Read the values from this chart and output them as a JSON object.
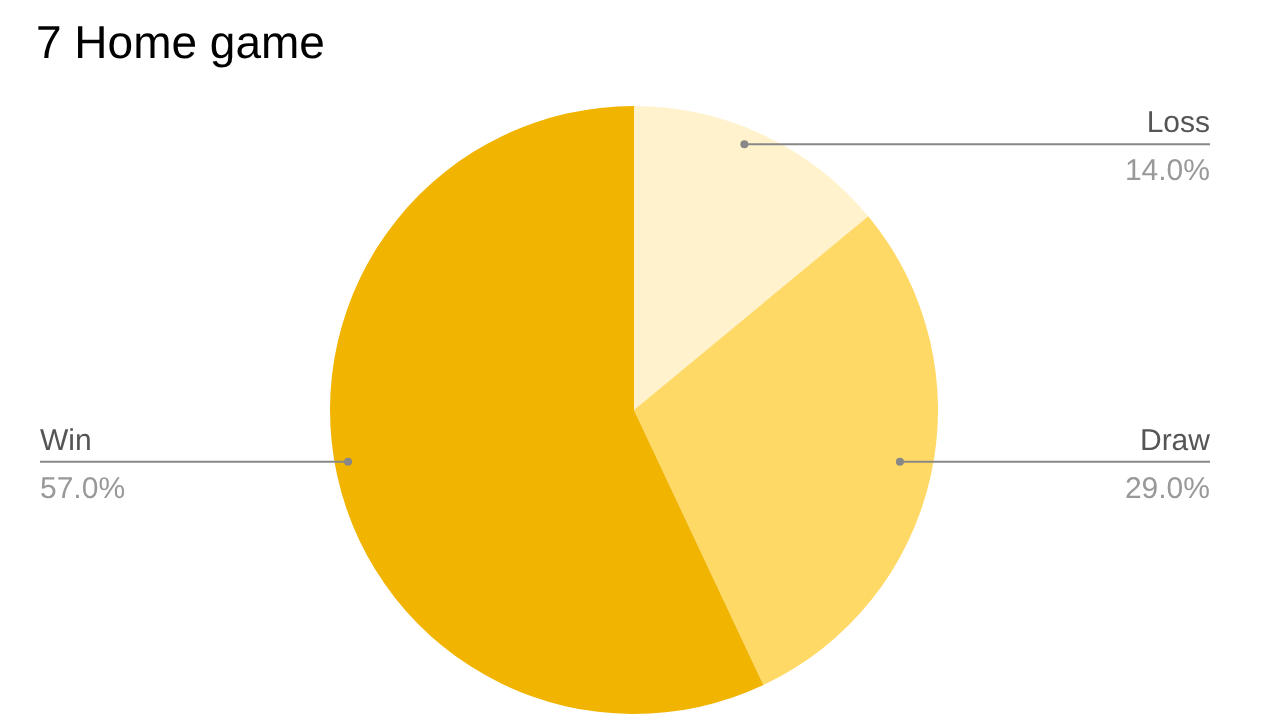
{
  "chart_data": {
    "type": "pie",
    "title": "7 Home game",
    "categories": [
      "Loss",
      "Draw",
      "Win"
    ],
    "values": [
      14,
      29,
      57
    ],
    "value_labels": [
      "14.0%",
      "29.0%",
      "57.0%"
    ],
    "colors": [
      "#fff2cc",
      "#ffd966",
      "#f1b400"
    ],
    "legend": false
  }
}
